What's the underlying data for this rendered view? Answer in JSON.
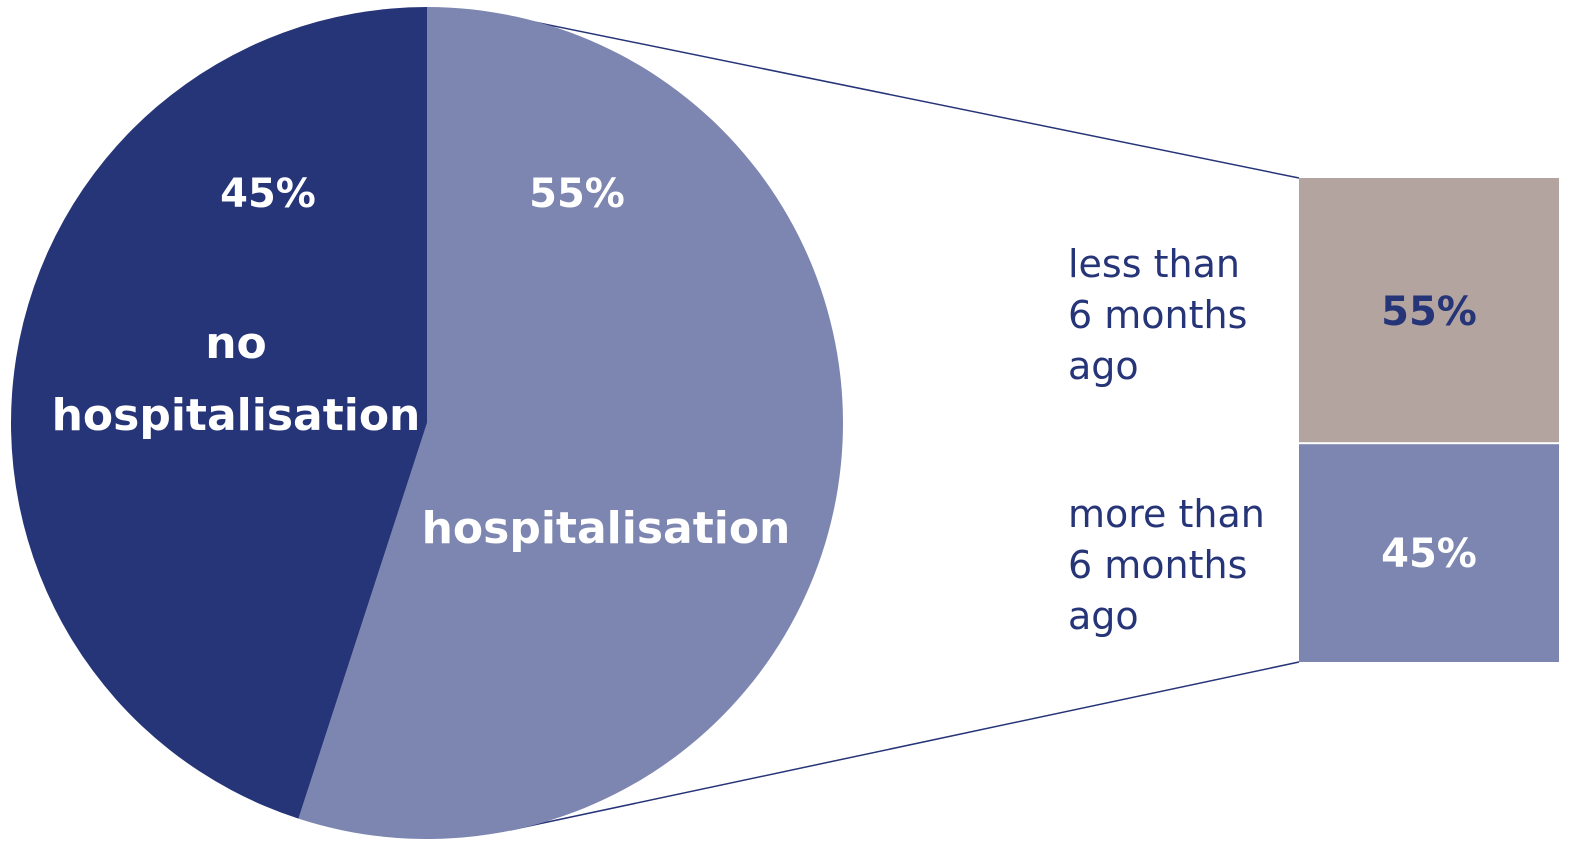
{
  "chart_data": [
    {
      "type": "pie",
      "slices": [
        {
          "label": "no hospitalisation",
          "value": 45,
          "value_label": "45%",
          "color": "#263478"
        },
        {
          "label": "hospitalisation",
          "value": 55,
          "value_label": "55%",
          "color": "#7d86b0"
        }
      ],
      "legend": "none"
    },
    {
      "type": "bar",
      "stacked": true,
      "categories": [
        "less than 6 months ago",
        "more than 6 months ago"
      ],
      "values": [
        55,
        45
      ],
      "value_labels": [
        "55%",
        "45%"
      ],
      "colors": [
        "#b3a4a0",
        "#7d86b0"
      ],
      "label_text_color": "#263478",
      "value_text_colors": [
        "#263478",
        "#ffffff"
      ],
      "connector_color": "#263478"
    }
  ]
}
